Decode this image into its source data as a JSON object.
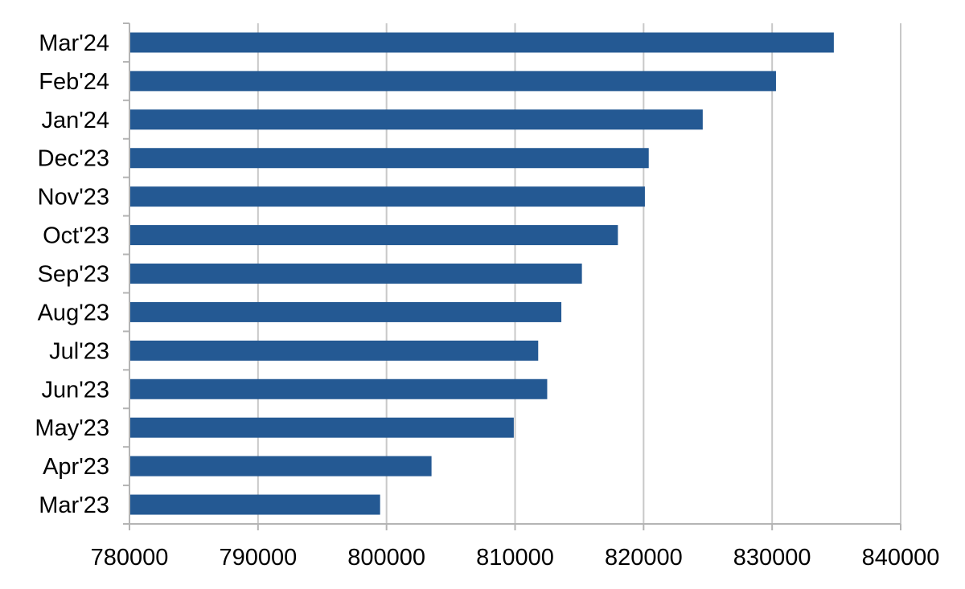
{
  "chart_data": {
    "type": "bar",
    "orientation": "horizontal",
    "title": "",
    "xlabel": "",
    "ylabel": "",
    "categories": [
      "Mar'23",
      "Apr'23",
      "May'23",
      "Jun'23",
      "Jul'23",
      "Aug'23",
      "Sep'23",
      "Oct'23",
      "Nov'23",
      "Dec'23",
      "Jan'24",
      "Feb'24",
      "Mar'24"
    ],
    "values": [
      799500,
      803500,
      809900,
      812500,
      811800,
      813600,
      815200,
      818000,
      820100,
      820400,
      824600,
      830300,
      834800
    ],
    "xlim": [
      780000,
      840000
    ],
    "x_ticks": [
      780000,
      790000,
      800000,
      810000,
      820000,
      830000,
      840000
    ],
    "x_tick_labels": [
      "780000",
      "790000",
      "800000",
      "810000",
      "820000",
      "830000",
      "840000"
    ],
    "grid": "vertical",
    "legend": "none",
    "bar_color": "#245993"
  }
}
